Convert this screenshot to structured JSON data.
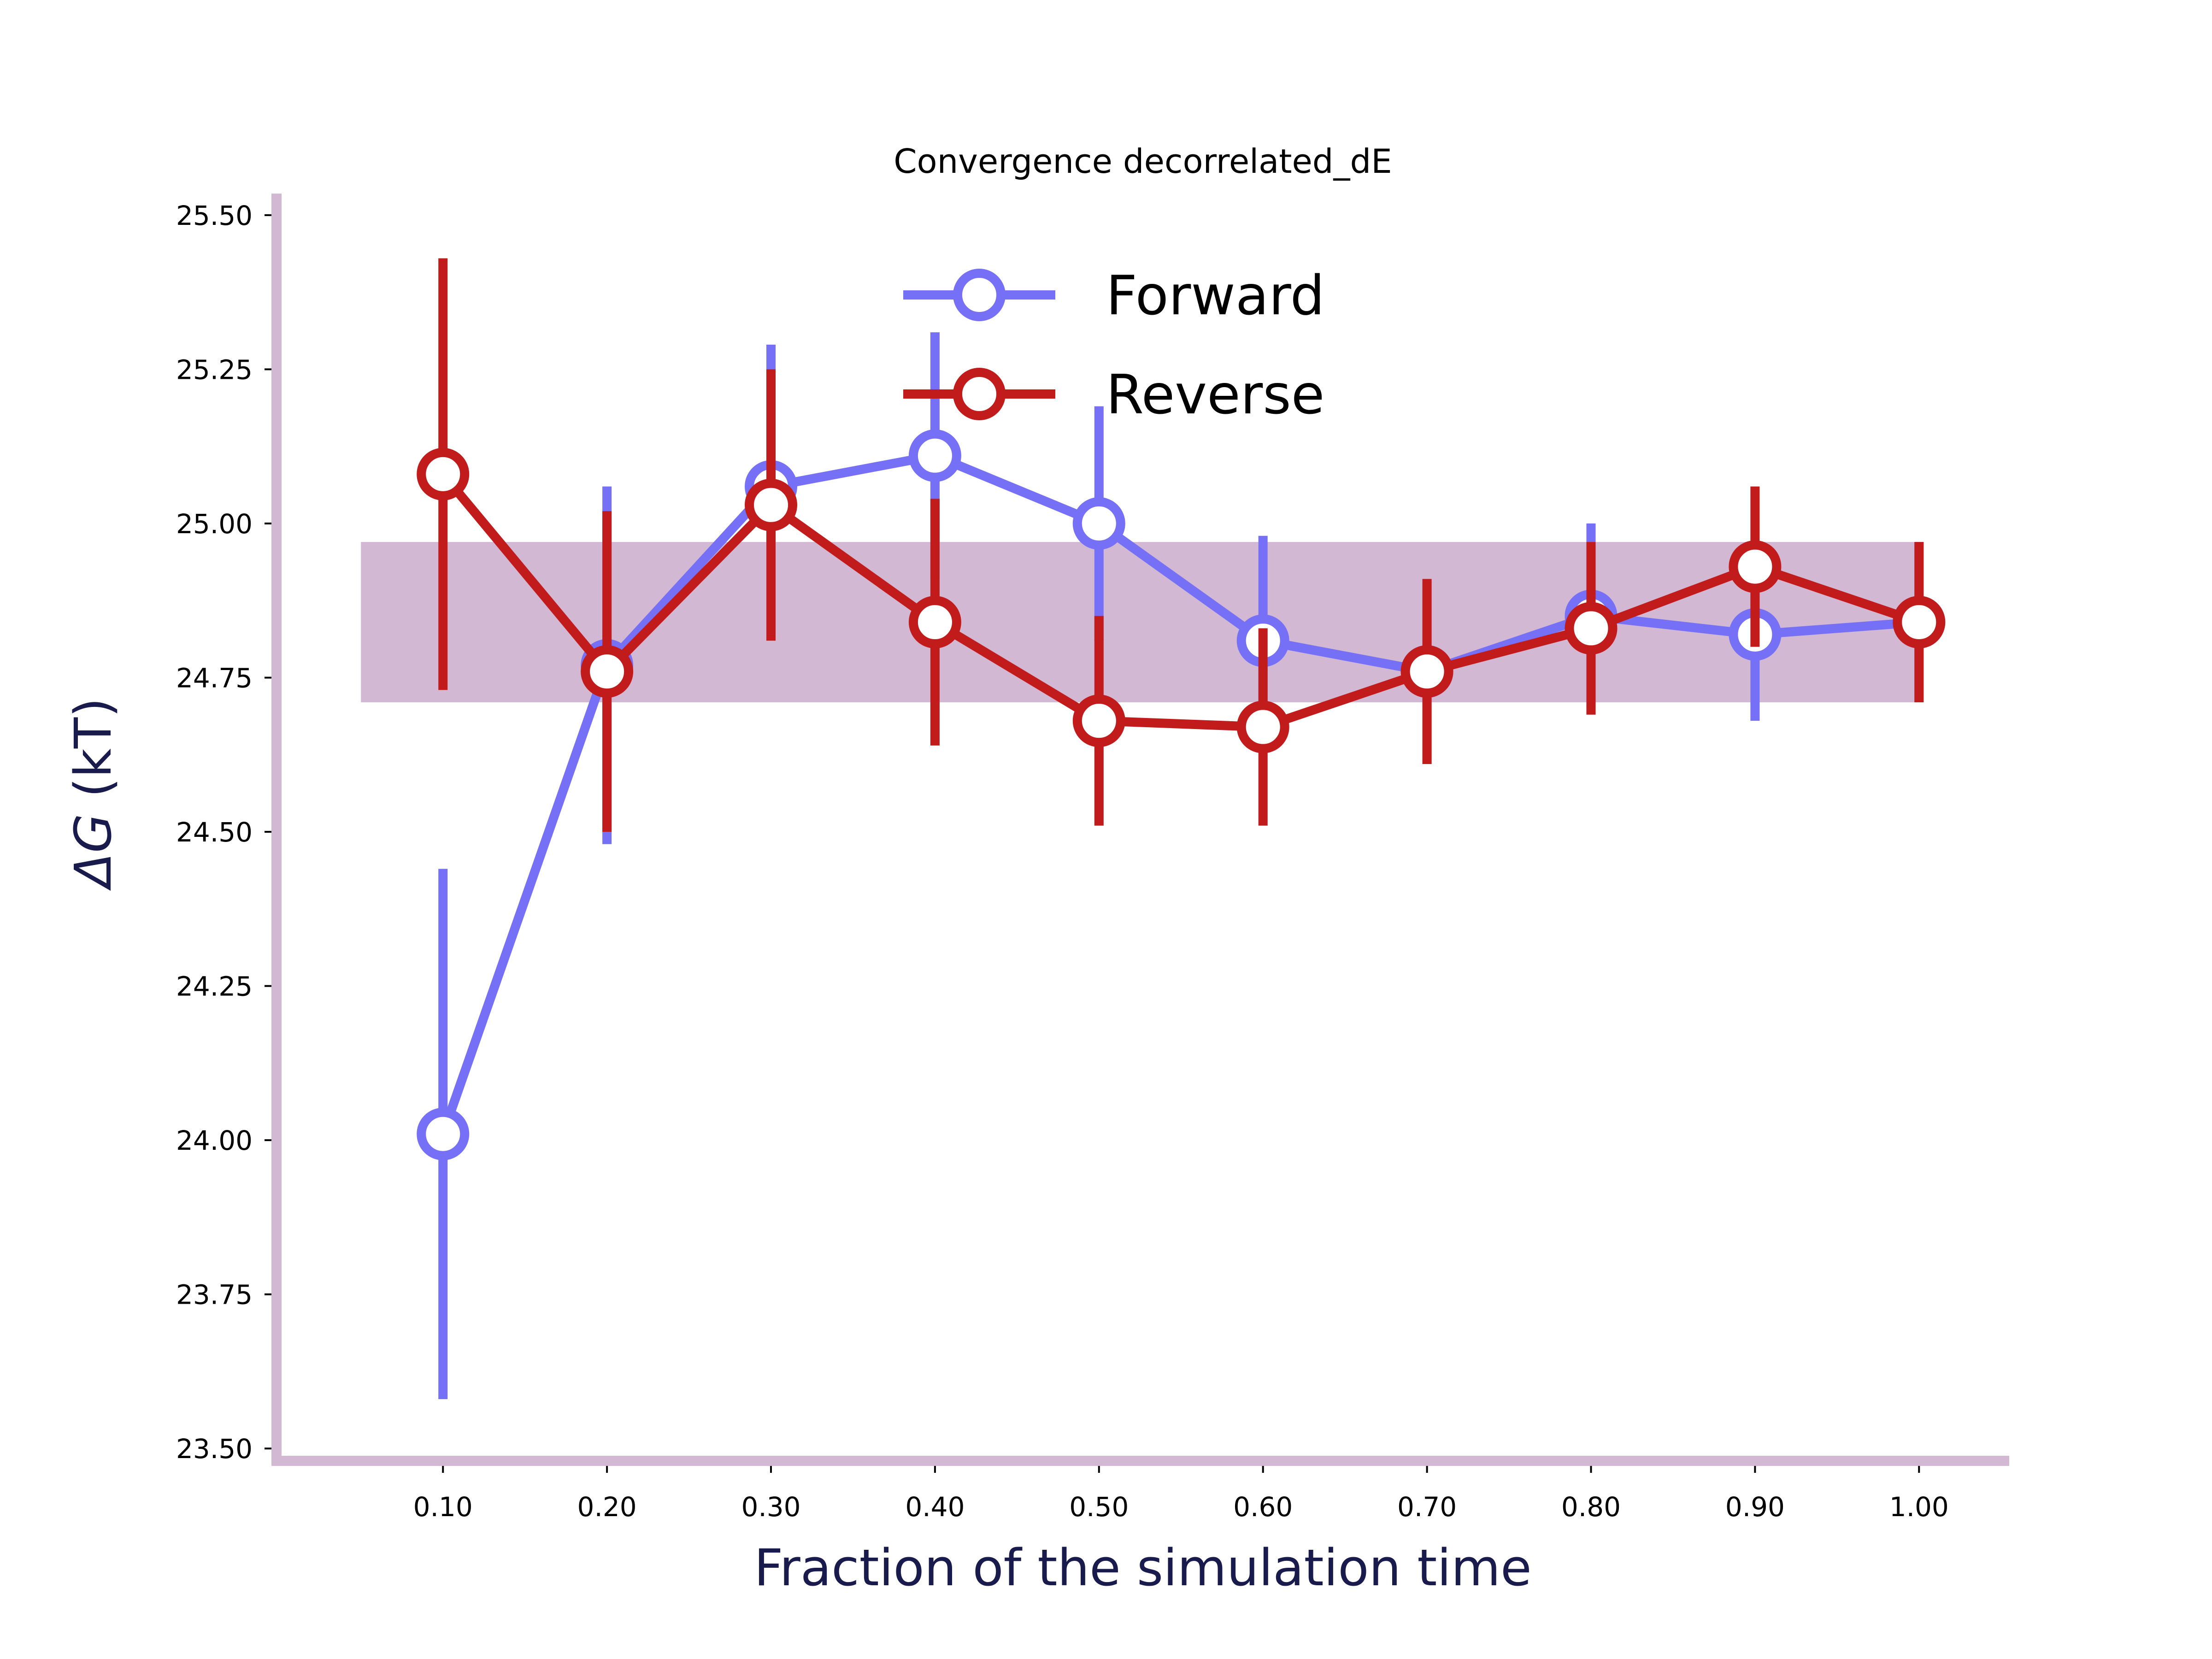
{
  "chart_data": {
    "type": "line",
    "title": "Convergence decorrelated_dE",
    "xlabel": "Fraction of the simulation time",
    "ylabel_symbol": "ΔG",
    "ylabel_unit": "(kT)",
    "xlim": [
      -0.0015,
      1.055
    ],
    "ylim": [
      23.48,
      25.535
    ],
    "x_ticks": [
      "0.10",
      "0.20",
      "0.30",
      "0.40",
      "0.50",
      "0.60",
      "0.70",
      "0.80",
      "0.90",
      "1.00"
    ],
    "y_ticks": [
      "23.50",
      "23.75",
      "24.00",
      "24.25",
      "24.50",
      "24.75",
      "25.00",
      "25.25",
      "25.50"
    ],
    "x": [
      0.1,
      0.2,
      0.3,
      0.4,
      0.5,
      0.6,
      0.7,
      0.8,
      0.9,
      1.0
    ],
    "band": {
      "x_start": 0.05,
      "x_end": 1.0,
      "y_low": 24.71,
      "y_high": 24.97,
      "color": "#d3b8d3"
    },
    "axis_color": "#d3b8d3",
    "series": [
      {
        "name": "Forward",
        "color": "#7570f5",
        "values": [
          24.01,
          24.77,
          25.06,
          25.11,
          25.0,
          24.81,
          24.76,
          24.85,
          24.82,
          24.84
        ],
        "errors": [
          0.43,
          0.29,
          0.23,
          0.2,
          0.19,
          0.17,
          0.15,
          0.15,
          0.14,
          0.13
        ]
      },
      {
        "name": "Reverse",
        "color": "#c11b1b",
        "values": [
          25.08,
          24.76,
          25.03,
          24.84,
          24.68,
          24.67,
          24.76,
          24.83,
          24.93,
          24.84
        ],
        "errors": [
          0.35,
          0.26,
          0.22,
          0.2,
          0.17,
          0.16,
          0.15,
          0.14,
          0.13,
          0.13
        ]
      }
    ],
    "legend": {
      "placement": "upper-center"
    },
    "grid": false
  }
}
